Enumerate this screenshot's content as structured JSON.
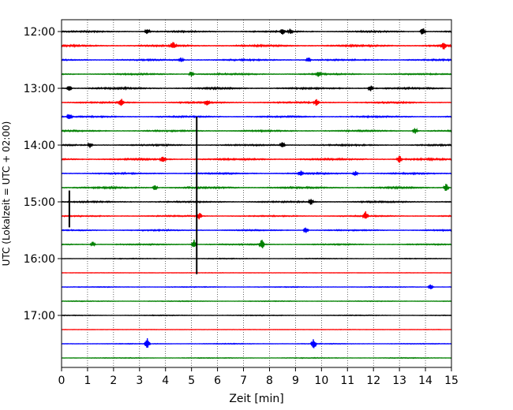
{
  "chart_data": {
    "type": "line",
    "xlabel": "Zeit  [min]",
    "ylabel": "UTC (Lokalzeit = UTC + 02:00)",
    "xlim": [
      0,
      15
    ],
    "x_ticks": [
      "0",
      "1",
      "2",
      "3",
      "4",
      "5",
      "6",
      "7",
      "8",
      "9",
      "10",
      "11",
      "12",
      "13",
      "14",
      "15"
    ],
    "y_ticks": [
      "12:00",
      "13:00",
      "14:00",
      "15:00",
      "16:00",
      "17:00"
    ],
    "grid": "vertical dotted",
    "trace_interval_min": 15,
    "colors": [
      "#000000",
      "#ff0000",
      "#0000ff",
      "#008000"
    ],
    "traces": [
      {
        "start": "12:00",
        "color": "#000000",
        "level": 0.6
      },
      {
        "start": "12:15",
        "color": "#ff0000",
        "level": 0.7
      },
      {
        "start": "12:30",
        "color": "#0000ff",
        "level": 0.6
      },
      {
        "start": "12:45",
        "color": "#008000",
        "level": 0.6
      },
      {
        "start": "13:00",
        "color": "#000000",
        "level": 0.7
      },
      {
        "start": "13:15",
        "color": "#ff0000",
        "level": 0.6
      },
      {
        "start": "13:30",
        "color": "#0000ff",
        "level": 0.6
      },
      {
        "start": "13:45",
        "color": "#008000",
        "level": 0.6
      },
      {
        "start": "14:00",
        "color": "#000000",
        "level": 0.6
      },
      {
        "start": "14:15",
        "color": "#ff0000",
        "level": 0.7
      },
      {
        "start": "14:30",
        "color": "#0000ff",
        "level": 0.6
      },
      {
        "start": "14:45",
        "color": "#008000",
        "level": 0.7
      },
      {
        "start": "15:00",
        "color": "#000000",
        "level": 0.6
      },
      {
        "start": "15:15",
        "color": "#ff0000",
        "level": 0.5
      },
      {
        "start": "15:30",
        "color": "#0000ff",
        "level": 0.5
      },
      {
        "start": "15:45",
        "color": "#008000",
        "level": 0.5
      },
      {
        "start": "16:00",
        "color": "#000000",
        "level": 0.3
      },
      {
        "start": "16:15",
        "color": "#ff0000",
        "level": 0.15
      },
      {
        "start": "16:30",
        "color": "#0000ff",
        "level": 0.3
      },
      {
        "start": "16:45",
        "color": "#008000",
        "level": 0.3
      },
      {
        "start": "17:00",
        "color": "#000000",
        "level": 0.3
      },
      {
        "start": "17:15",
        "color": "#ff0000",
        "level": 0.15
      },
      {
        "start": "17:30",
        "color": "#0000ff",
        "level": 0.3
      },
      {
        "start": "17:45",
        "color": "#008000",
        "level": 0.3
      }
    ],
    "events": [
      {
        "trace": 0,
        "t": 3.3,
        "amp": 1.2
      },
      {
        "trace": 0,
        "t": 8.5,
        "amp": 1.3
      },
      {
        "trace": 0,
        "t": 8.8,
        "amp": 1.0
      },
      {
        "trace": 0,
        "t": 13.9,
        "amp": 1.6
      },
      {
        "trace": 1,
        "t": 4.3,
        "amp": 1.4
      },
      {
        "trace": 1,
        "t": 14.7,
        "amp": 1.5
      },
      {
        "trace": 2,
        "t": 4.6,
        "amp": 1.0
      },
      {
        "trace": 2,
        "t": 9.5,
        "amp": 1.0
      },
      {
        "trace": 3,
        "t": 5.0,
        "amp": 1.0
      },
      {
        "trace": 3,
        "t": 9.9,
        "amp": 1.0
      },
      {
        "trace": 4,
        "t": 0.3,
        "amp": 1.2
      },
      {
        "trace": 4,
        "t": 11.9,
        "amp": 1.3
      },
      {
        "trace": 5,
        "t": 2.3,
        "amp": 1.5
      },
      {
        "trace": 5,
        "t": 5.6,
        "amp": 1.2
      },
      {
        "trace": 5,
        "t": 9.8,
        "amp": 1.3
      },
      {
        "trace": 6,
        "t": 0.3,
        "amp": 1.2
      },
      {
        "trace": 7,
        "t": 13.6,
        "amp": 1.3
      },
      {
        "trace": 8,
        "t": 1.1,
        "amp": 1.1
      },
      {
        "trace": 8,
        "t": 8.5,
        "amp": 1.2
      },
      {
        "trace": 9,
        "t": 3.9,
        "amp": 1.5
      },
      {
        "trace": 9,
        "t": 13.0,
        "amp": 1.5
      },
      {
        "trace": 10,
        "t": 9.2,
        "amp": 1.3
      },
      {
        "trace": 10,
        "t": 11.3,
        "amp": 1.0
      },
      {
        "trace": 11,
        "t": 3.6,
        "amp": 1.1
      },
      {
        "trace": 11,
        "t": 14.8,
        "amp": 1.7
      },
      {
        "trace": 12,
        "t": 9.6,
        "amp": 1.2
      },
      {
        "trace": 13,
        "t": 5.3,
        "amp": 1.5
      },
      {
        "trace": 13,
        "t": 11.7,
        "amp": 1.8
      },
      {
        "trace": 14,
        "t": 9.4,
        "amp": 1.4
      },
      {
        "trace": 15,
        "t": 5.1,
        "amp": 2.0
      },
      {
        "trace": 15,
        "t": 7.7,
        "amp": 2.2
      },
      {
        "trace": 15,
        "t": 1.2,
        "amp": 1.0
      },
      {
        "trace": 18,
        "t": 14.2,
        "amp": 1.2
      },
      {
        "trace": 22,
        "t": 3.3,
        "amp": 2.2
      },
      {
        "trace": 22,
        "t": 9.7,
        "amp": 2.0
      }
    ],
    "spikes": [
      {
        "t": 0.3,
        "from_trace": 11.2,
        "to_trace": 13.8,
        "color": "#000000"
      },
      {
        "t": 5.2,
        "from_trace": 6.0,
        "to_trace": 17.1,
        "color": "#000000"
      }
    ]
  }
}
